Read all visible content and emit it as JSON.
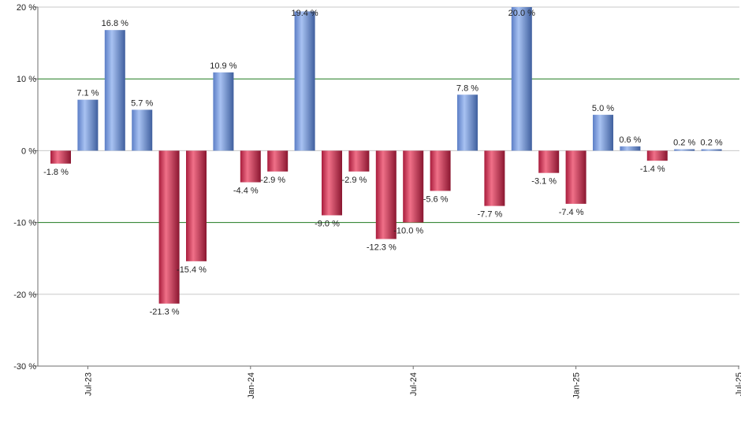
{
  "chart_data": {
    "type": "bar",
    "categories": [
      "Jun-23",
      "Jul-23",
      "Aug-23",
      "Sep-23",
      "Oct-23",
      "Nov-23",
      "Dec-23",
      "Jan-24",
      "Feb-24",
      "Mar-24",
      "Apr-24",
      "May-24",
      "Jun-24",
      "Jul-24",
      "Aug-24",
      "Sep-24",
      "Oct-24",
      "Nov-24",
      "Dec-24",
      "Jan-25",
      "Feb-25",
      "Mar-25",
      "Apr-25",
      "May-25",
      "Jun-25"
    ],
    "values": [
      -1.8,
      7.1,
      16.8,
      5.7,
      -21.3,
      -15.4,
      10.9,
      -4.4,
      -2.9,
      19.4,
      -9.0,
      -2.9,
      -12.3,
      -10.0,
      -5.6,
      7.8,
      -7.7,
      20.0,
      -3.1,
      -7.4,
      5.0,
      0.6,
      -1.4,
      0.2,
      0.2
    ],
    "value_labels": [
      "-1.8 %",
      "7.1 %",
      "16.8 %",
      "5.7 %",
      "-21.3 %",
      "-15.4 %",
      "10.9 %",
      "-4.4 %",
      "-2.9 %",
      "19.4 %",
      "-9.0 %",
      "-2.9 %",
      "-12.3 %",
      "-10.0 %",
      "-5.6 %",
      "7.8 %",
      "-7.7 %",
      "20.0 %",
      "-3.1 %",
      "-7.4 %",
      "5.0 %",
      "0.6 %",
      "-1.4 %",
      "0.2 %",
      "0.2 %"
    ],
    "x_tick_labels": [
      {
        "label": "Jul-23",
        "category": "Jul-23"
      },
      {
        "label": "Jan-24",
        "category": "Jan-24"
      },
      {
        "label": "Jul-24",
        "category": "Jul-24"
      },
      {
        "label": "Jan-25",
        "category": "Jan-25"
      },
      {
        "label": "Jul-25",
        "category": "Jul-25"
      }
    ],
    "y_ticks": [
      {
        "value": 20,
        "label": "20 %"
      },
      {
        "value": 10,
        "label": "10 %"
      },
      {
        "value": 0,
        "label": "0 %"
      },
      {
        "value": -10,
        "label": "-10 %"
      },
      {
        "value": -20,
        "label": "-20 %"
      },
      {
        "value": -30,
        "label": "-30 %"
      }
    ],
    "ylim": [
      -30,
      20
    ],
    "title": "",
    "xlabel": "",
    "ylabel": "",
    "legend": "none",
    "highlight_gridlines": [
      10,
      -10
    ],
    "colors": {
      "positive": "#7e9fe4",
      "negative": "#cc2848",
      "highlight_gridline": "#1f7a1f",
      "gridline": "#c8c8c8",
      "axis": "#6e6e6e"
    }
  }
}
